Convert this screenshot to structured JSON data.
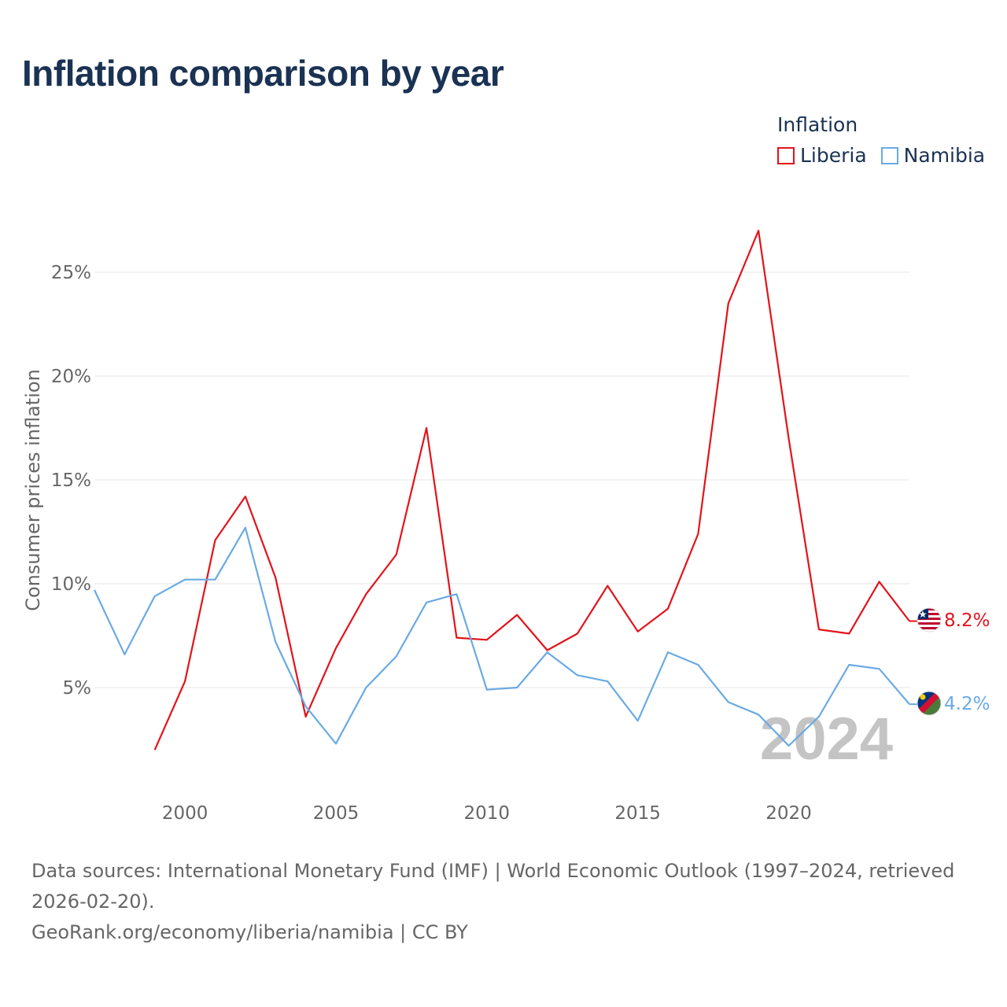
{
  "title": "Inflation comparison by year",
  "legend": {
    "title": "Inflation",
    "items": [
      {
        "label": "Liberia",
        "color": "#e3131b"
      },
      {
        "label": "Namibia",
        "color": "#6aaae4"
      }
    ]
  },
  "year_watermark": "2024",
  "footer": {
    "sources": "Data sources: International Monetary Fund (IMF) | World Economic Outlook (1997–2024, retrieved 2026-02-20).",
    "credit": "GeoRank.org/economy/liberia/namibia | CC BY"
  },
  "chart_data": {
    "type": "line",
    "title": "Inflation comparison by year",
    "xlabel": "",
    "ylabel": "Consumer prices inflation",
    "xlim": [
      1997,
      2024
    ],
    "ylim": [
      0.7,
      28.5
    ],
    "x_ticks": [
      2000,
      2005,
      2010,
      2015,
      2020
    ],
    "y_ticks": [
      5,
      10,
      15,
      20,
      25
    ],
    "y_tick_labels": [
      "5%",
      "10%",
      "15%",
      "20%",
      "25%"
    ],
    "grid": true,
    "legend_position": "top-right",
    "series": [
      {
        "name": "Liberia",
        "color": "#e3131b",
        "end_label": "8.2%",
        "x": [
          1999,
          2000,
          2001,
          2002,
          2003,
          2004,
          2005,
          2006,
          2007,
          2008,
          2009,
          2010,
          2011,
          2012,
          2013,
          2014,
          2015,
          2016,
          2017,
          2018,
          2019,
          2020,
          2021,
          2022,
          2023,
          2024
        ],
        "values": [
          2.0,
          5.3,
          12.1,
          14.2,
          10.3,
          3.6,
          6.9,
          9.5,
          11.4,
          17.5,
          7.4,
          7.3,
          8.5,
          6.8,
          7.6,
          9.9,
          7.7,
          8.8,
          12.4,
          23.5,
          27.0,
          17.0,
          7.8,
          7.6,
          10.1,
          8.2
        ]
      },
      {
        "name": "Namibia",
        "color": "#6aaae4",
        "end_label": "4.2%",
        "x": [
          1997,
          1998,
          1999,
          2000,
          2001,
          2002,
          2003,
          2004,
          2005,
          2006,
          2007,
          2008,
          2009,
          2010,
          2011,
          2012,
          2013,
          2014,
          2015,
          2016,
          2017,
          2018,
          2019,
          2020,
          2021,
          2022,
          2023,
          2024
        ],
        "values": [
          9.7,
          6.6,
          9.4,
          10.2,
          10.2,
          12.7,
          7.2,
          4.1,
          2.3,
          5.0,
          6.5,
          9.1,
          9.5,
          4.9,
          5.0,
          6.7,
          5.6,
          5.3,
          3.4,
          6.7,
          6.1,
          4.3,
          3.7,
          2.2,
          3.6,
          6.1,
          5.9,
          4.2
        ]
      }
    ]
  }
}
